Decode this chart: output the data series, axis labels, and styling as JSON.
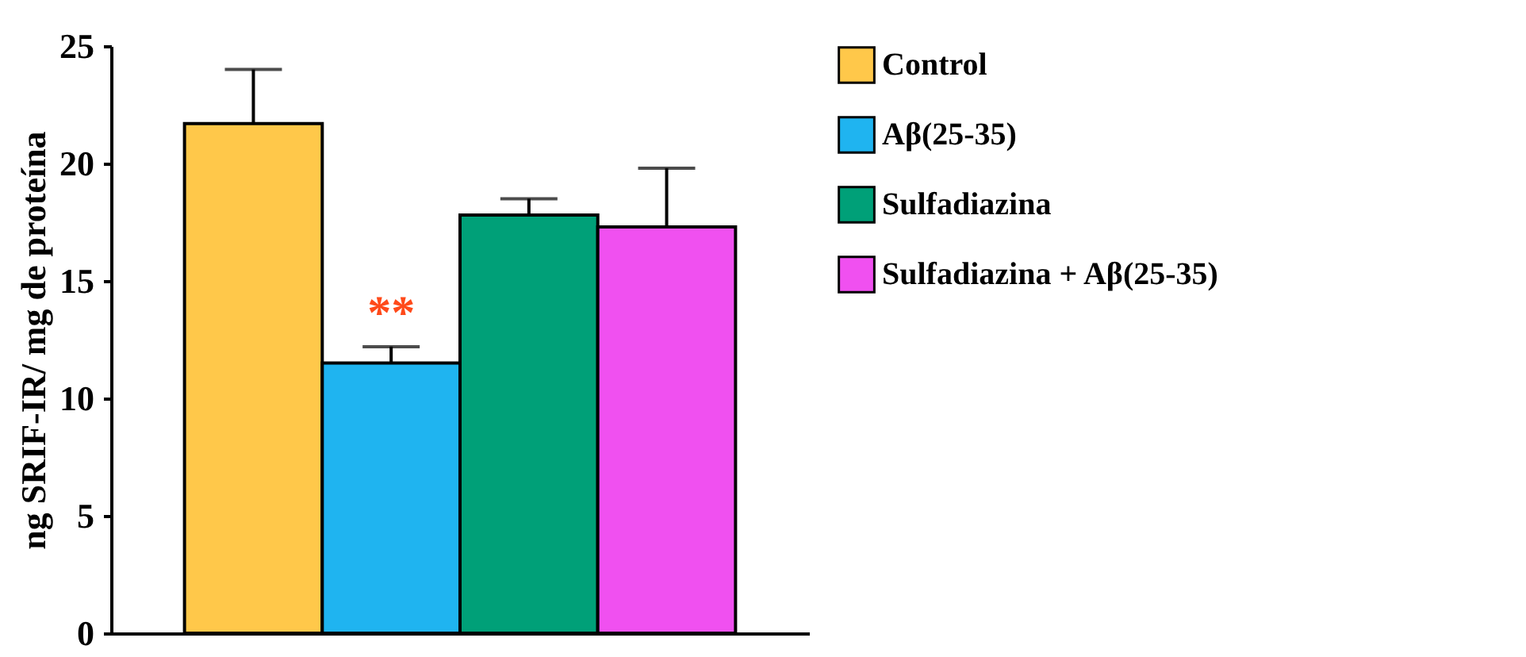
{
  "chart_data": {
    "type": "bar",
    "ylabel": "ng SRIF-IR/ mg de proteína",
    "categories": [
      null
    ],
    "series": [
      {
        "name": "Control",
        "color": "#ffc84a",
        "values": [
          21.7
        ],
        "errors": [
          2.3
        ]
      },
      {
        "name": "Aβ(25-35)",
        "color": "#1fb4f0",
        "values": [
          11.5
        ],
        "errors": [
          0.7
        ]
      },
      {
        "name": "Sulfadiazina",
        "color": "#00a078",
        "values": [
          17.8
        ],
        "errors": [
          0.7
        ]
      },
      {
        "name": "Sulfadiazina + Aβ(25-35)",
        "color": "#f050f0",
        "values": [
          17.3
        ],
        "errors": [
          2.5
        ]
      }
    ],
    "ylim": [
      0,
      25
    ],
    "yticks": [
      0,
      5,
      10,
      15,
      20,
      25
    ],
    "grid": false,
    "legend": "right",
    "annotations": [
      "**"
    ]
  }
}
